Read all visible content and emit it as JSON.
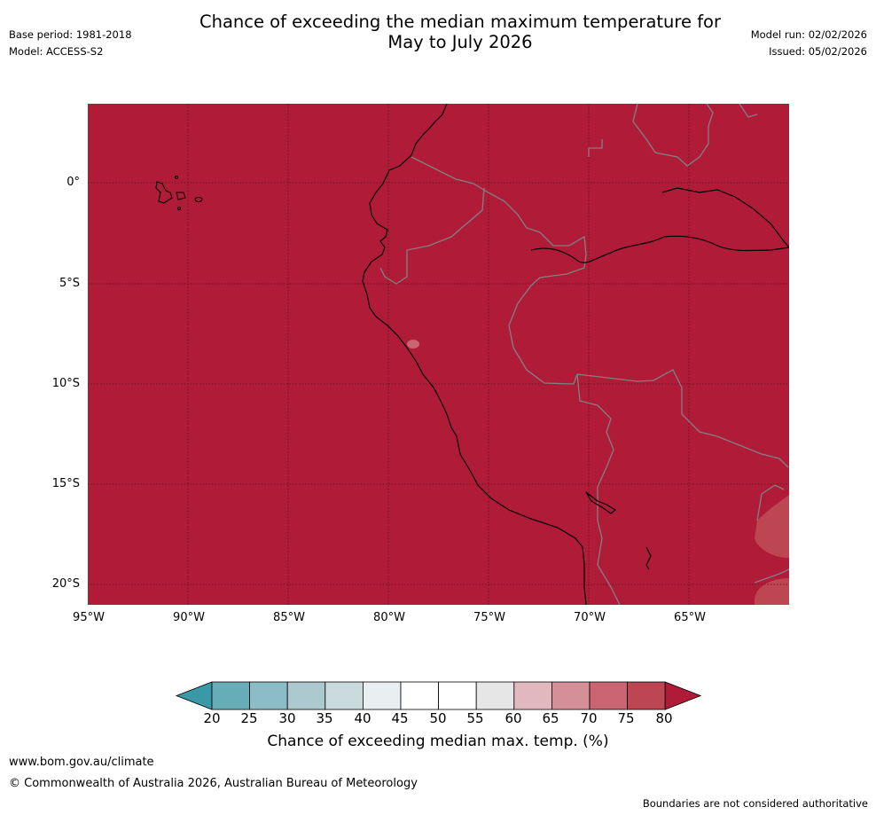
{
  "title_line1": "Chance of exceeding the median maximum temperature for",
  "title_line2": "May to July 2026",
  "base_period": "Base period: 1981-2018",
  "model": "Model: ACCESS-S2",
  "model_run": "Model run: 02/02/2026",
  "issued": "Issued: 05/02/2026",
  "map": {
    "lat_labels": [
      "0°",
      "5°S",
      "10°S",
      "15°S",
      "20°S"
    ],
    "lon_labels": [
      "95°W",
      "90°W",
      "85°W",
      "80°W",
      "75°W",
      "70°W",
      "65°W"
    ],
    "fill_color": "#b01c38",
    "coast_color": "#000000",
    "border_color": "#808080"
  },
  "colorbar": {
    "labels": [
      "20",
      "25",
      "30",
      "35",
      "40",
      "45",
      "50",
      "55",
      "60",
      "65",
      "70",
      "75",
      "80"
    ],
    "colors": [
      "#3a99a6",
      "#66adb8",
      "#8cbcc5",
      "#abc9ce",
      "#c9d9dc",
      "#e9eff0",
      "#ffffff",
      "#ffffff",
      "#e6e6e6",
      "#e0b8be",
      "#d58f98",
      "#c86570",
      "#bd4653",
      "#b01c38"
    ],
    "title": "Chance of exceeding median max. temp. (%)"
  },
  "footer": {
    "url": "www.bom.gov.au/climate",
    "copyright": "© Commonwealth of Australia 2026, Australian Bureau of Meteorology",
    "disclaimer": "Boundaries are not considered authoritative"
  }
}
